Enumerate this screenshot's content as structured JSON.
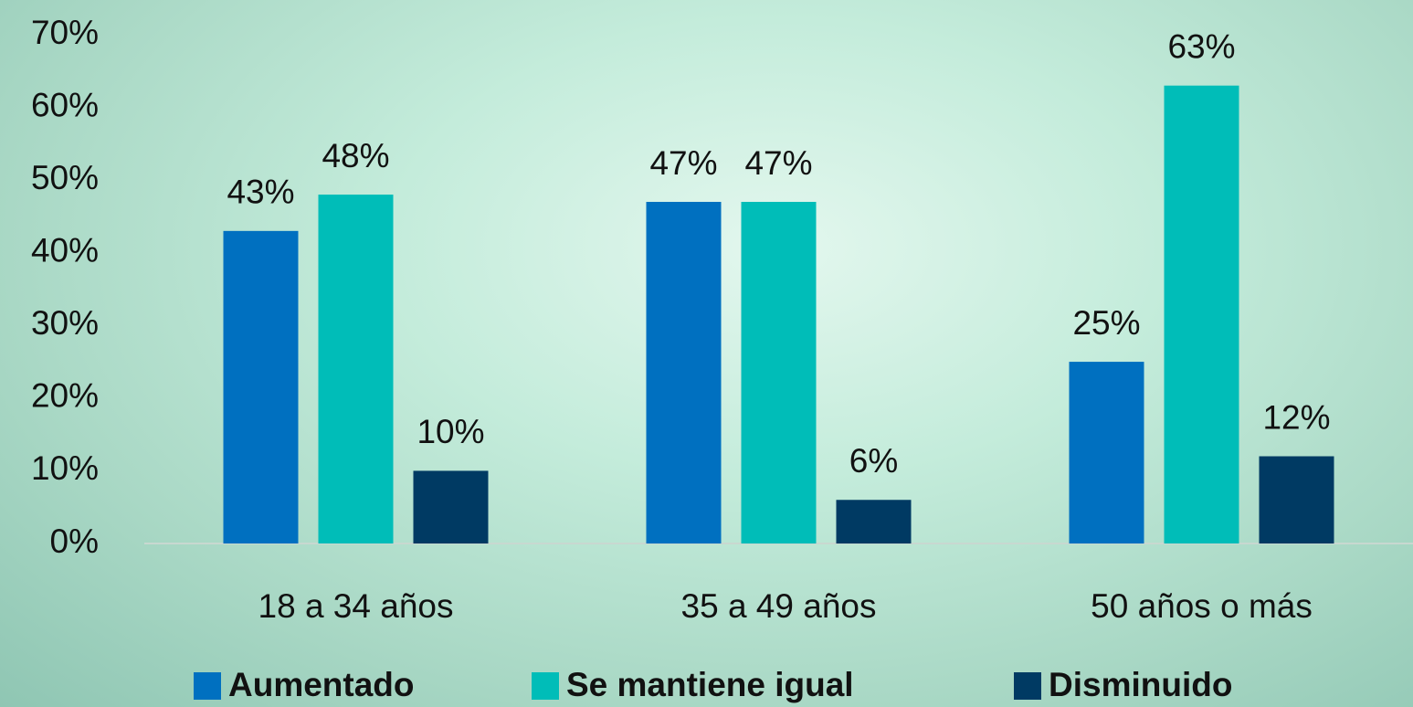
{
  "chart_data": {
    "type": "bar",
    "categories": [
      "18 a 34 años",
      "35 a 49 años",
      "50 años o más"
    ],
    "series": [
      {
        "name": "Aumentado",
        "color": "#0070c0",
        "values": [
          43,
          47,
          25
        ],
        "value_labels": [
          "43%",
          "47%",
          "25%"
        ]
      },
      {
        "name": "Se mantiene igual",
        "color": "#00bdb8",
        "values": [
          48,
          47,
          63
        ],
        "value_labels": [
          "48%",
          "47%",
          "63%"
        ]
      },
      {
        "name": "Disminuido",
        "color": "#003a63",
        "values": [
          10,
          6,
          12
        ],
        "value_labels": [
          "10%",
          "6%",
          "12%"
        ]
      }
    ],
    "ylim": [
      0,
      70
    ],
    "yticks": [
      {
        "value": 0,
        "label": "0%"
      },
      {
        "value": 10,
        "label": "10%"
      },
      {
        "value": 20,
        "label": "20%"
      },
      {
        "value": 30,
        "label": "30%"
      },
      {
        "value": 40,
        "label": "40%"
      },
      {
        "value": 50,
        "label": "50%"
      },
      {
        "value": 60,
        "label": "60%"
      },
      {
        "value": 70,
        "label": "70%"
      }
    ],
    "grid": false,
    "legend": "bottom"
  }
}
